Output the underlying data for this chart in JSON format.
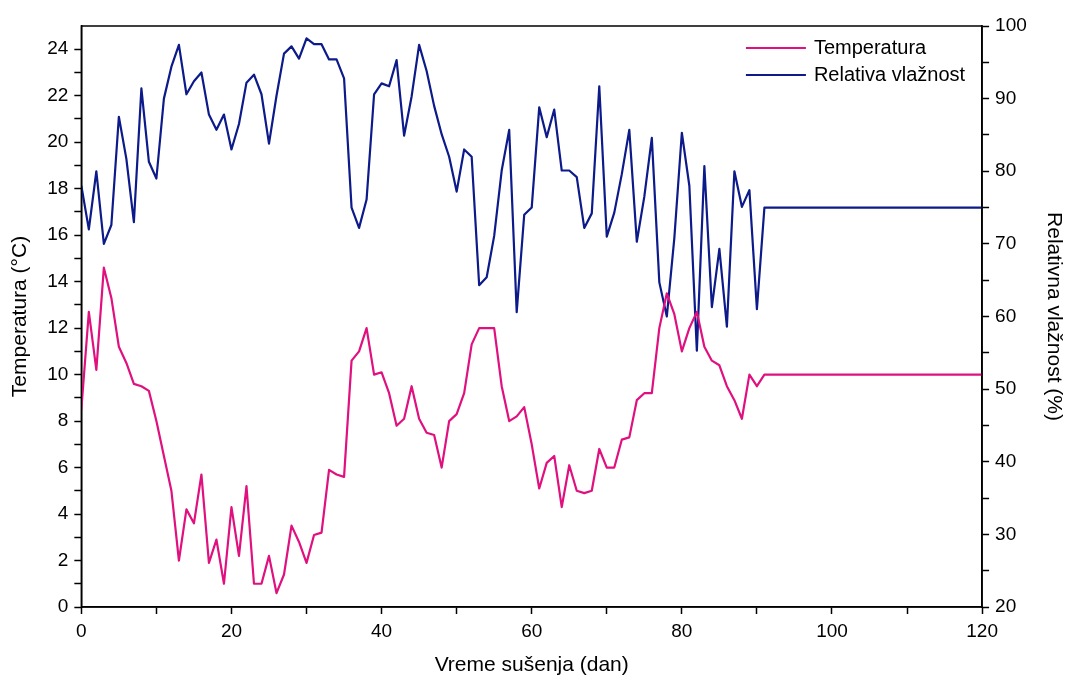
{
  "chart_data": {
    "type": "line",
    "xlabel": "Vreme sušenja (dan)",
    "ylabel": "Temperatura (°C)",
    "y2label": "Relativna vlažnost (%)",
    "x": [
      0,
      1,
      2,
      3,
      4,
      5,
      6,
      7,
      8,
      9,
      10,
      11,
      12,
      13,
      14,
      15,
      16,
      17,
      18,
      19,
      20,
      21,
      22,
      23,
      24,
      25,
      26,
      27,
      28,
      29,
      30,
      31,
      32,
      33,
      34,
      35,
      36,
      37,
      38,
      39,
      40,
      41,
      42,
      43,
      44,
      45,
      46,
      47,
      48,
      49,
      50,
      51,
      52,
      53,
      54,
      55,
      56,
      57,
      58,
      59,
      60,
      61,
      62,
      63,
      64,
      65,
      66,
      67,
      68,
      69,
      70,
      71,
      72,
      73,
      74,
      75,
      76,
      77,
      78,
      79,
      80,
      81,
      82,
      83,
      84,
      85,
      86,
      87,
      88,
      89,
      90,
      91,
      120
    ],
    "series": [
      {
        "name": "Temperatura",
        "color": "#e0107f",
        "values": [
          8.5,
          12.7,
          10.2,
          14.6,
          13.3,
          11.2,
          10.5,
          9.6,
          9.5,
          9.3,
          8.0,
          6.5,
          5.0,
          2.0,
          4.2,
          3.6,
          5.7,
          1.9,
          2.9,
          1.0,
          4.3,
          2.2,
          5.2,
          1.0,
          1.0,
          2.2,
          0.6,
          1.4,
          3.5,
          2.8,
          1.9,
          3.1,
          3.2,
          5.9,
          5.7,
          5.6,
          10.6,
          11.0,
          12.0,
          10.0,
          10.1,
          9.2,
          7.8,
          8.1,
          9.5,
          8.1,
          7.5,
          7.4,
          6.0,
          8.0,
          8.3,
          9.2,
          11.3,
          12.0,
          12.0,
          12.0,
          9.5,
          8.0,
          8.2,
          8.6,
          7.0,
          5.1,
          6.2,
          6.5,
          4.3,
          6.1,
          5.0,
          4.9,
          5.0,
          6.8,
          6.0,
          6.0,
          7.2,
          7.3,
          8.9,
          9.2,
          9.2,
          12.0,
          13.5,
          12.6,
          11.0,
          12.0,
          12.7,
          11.2,
          10.6,
          10.4,
          9.5,
          8.9,
          8.1,
          10.0,
          9.5,
          10.0,
          10.0
        ]
      },
      {
        "name": "Relativa vlažnost",
        "color": "#0c1a8a",
        "axis": "y2",
        "values": [
          78,
          72,
          80,
          70,
          72.6,
          87.5,
          81.7,
          73,
          91.4,
          81.3,
          79,
          90,
          94.4,
          97.4,
          90.6,
          92.4,
          93.6,
          87.8,
          85.7,
          87.8,
          83,
          86.5,
          92.2,
          93.3,
          90.6,
          83.8,
          90.4,
          96.2,
          97.2,
          95.5,
          98.3,
          97.5,
          97.5,
          95.4,
          95.4,
          92.8,
          75,
          72.2,
          76.1,
          90.6,
          92.1,
          91.7,
          95.3,
          84.9,
          90.3,
          97.4,
          93.8,
          89,
          85.1,
          82,
          77.2,
          83,
          82,
          64.3,
          65.4,
          71.1,
          80.1,
          85.7,
          60.6,
          74,
          75,
          88.8,
          84.7,
          88.5,
          80.1,
          80.1,
          79.2,
          72.2,
          74.2,
          91.7,
          71,
          74.3,
          79.6,
          85.7,
          70.3,
          76.5,
          84.6,
          64.7,
          60,
          70.8,
          85.3,
          78,
          55.3,
          80.7,
          61.3,
          69.3,
          58.6,
          80,
          75.1,
          77.4,
          61,
          75,
          75
        ]
      }
    ],
    "xlim": [
      0,
      120
    ],
    "xticks": [
      0,
      {
        "value": 10,
        "label": null
      },
      20,
      {
        "value": 30,
        "label": null
      },
      40,
      {
        "value": 50,
        "label": null
      },
      60,
      {
        "value": 70,
        "label": null
      },
      80,
      {
        "value": 90,
        "label": null
      },
      100,
      {
        "value": 110,
        "label": null
      },
      120
    ],
    "ylim": [
      0,
      25
    ],
    "yticks": [
      0,
      {
        "value": 1,
        "label": null
      },
      2,
      {
        "value": 3,
        "label": null
      },
      4,
      {
        "value": 5,
        "label": null
      },
      6,
      {
        "value": 7,
        "label": null
      },
      8,
      {
        "value": 9,
        "label": null
      },
      10,
      {
        "value": 11,
        "label": null
      },
      12,
      {
        "value": 13,
        "label": null
      },
      14,
      {
        "value": 15,
        "label": null
      },
      16,
      {
        "value": 17,
        "label": null
      },
      18,
      {
        "value": 19,
        "label": null
      },
      20,
      {
        "value": 21,
        "label": null
      },
      22,
      {
        "value": 23,
        "label": null
      },
      24
    ],
    "y2lim": [
      20,
      100
    ],
    "y2ticks": [
      20,
      {
        "value": 25,
        "label": null
      },
      30,
      {
        "value": 35,
        "label": null
      },
      40,
      {
        "value": 45,
        "label": null
      },
      50,
      {
        "value": 55,
        "label": null
      },
      60,
      {
        "value": 65,
        "label": null
      },
      70,
      {
        "value": 75,
        "label": null
      },
      80,
      {
        "value": 85,
        "label": null
      },
      90,
      {
        "value": 95,
        "label": null
      },
      100
    ],
    "legend": "top right",
    "grid": false,
    "marker": "none",
    "line_style": "solid"
  }
}
